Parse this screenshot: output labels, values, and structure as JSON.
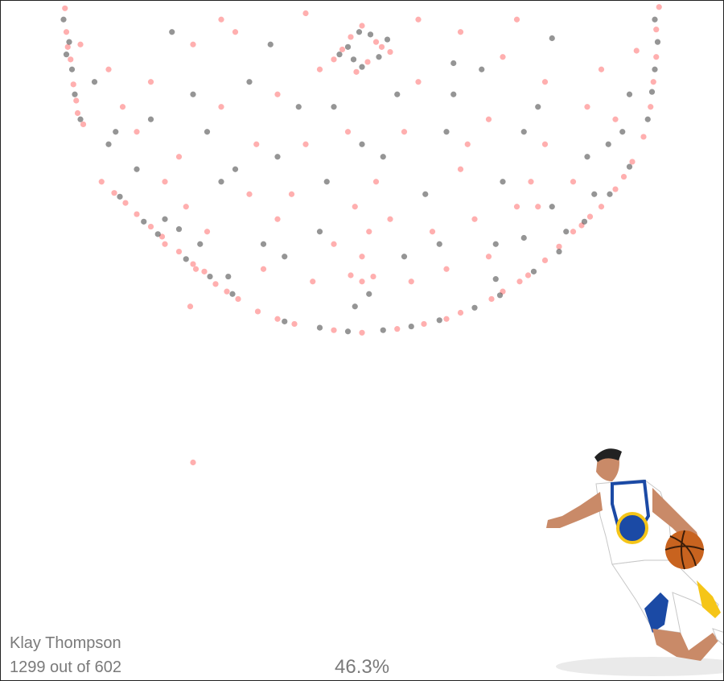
{
  "player": {
    "name": "Klay Thompson",
    "count_text": "1299 out of 602",
    "percentage_text": "46.3%"
  },
  "chart_data": {
    "type": "scatter",
    "title": "",
    "xlabel": "",
    "ylabel": "",
    "xlim": [
      -250,
      250
    ],
    "ylim": [
      -52,
      370
    ],
    "grid": false,
    "legend": "none",
    "colors": {
      "made": "#ff4d4d",
      "missed": "#2b2b2b"
    },
    "series": [
      {
        "outcome": "made",
        "points": [
          [
            -211,
            -39
          ],
          [
            -210,
            -20
          ],
          [
            -207,
            2
          ],
          [
            -205,
            22
          ],
          [
            -202,
            45
          ],
          [
            -209,
            -8
          ],
          [
            -203,
            35
          ],
          [
            -198,
            54
          ],
          [
            -176,
            109
          ],
          [
            -168,
            117
          ],
          [
            -150,
            136
          ],
          [
            -142,
            144
          ],
          [
            -120,
            166
          ],
          [
            -112,
            172
          ],
          [
            -96,
            188
          ],
          [
            -88,
            194
          ],
          [
            -60,
            210
          ],
          [
            -48,
            214
          ],
          [
            -20,
            219
          ],
          [
            0,
            221
          ],
          [
            25,
            218
          ],
          [
            44,
            214
          ],
          [
            70,
            205
          ],
          [
            92,
            194
          ],
          [
            112,
            180
          ],
          [
            130,
            163
          ],
          [
            150,
            140
          ],
          [
            162,
            128
          ],
          [
            180,
            106
          ],
          [
            192,
            84
          ],
          [
            200,
            64
          ],
          [
            205,
            40
          ],
          [
            207,
            20
          ],
          [
            209,
            0
          ],
          [
            209,
            -22
          ],
          [
            211,
            -40
          ],
          [
            -160,
            126
          ],
          [
            -130,
            156
          ],
          [
            -104,
            182
          ],
          [
            -74,
            204
          ],
          [
            60,
            210
          ],
          [
            100,
            188
          ],
          [
            140,
            152
          ],
          [
            170,
            120
          ],
          [
            186,
            96
          ],
          [
            -185,
            100
          ],
          [
            -140,
            150
          ],
          [
            -118,
            170
          ],
          [
            118,
            175
          ],
          [
            156,
            135
          ],
          [
            0,
            -25
          ],
          [
            -8,
            -16
          ],
          [
            10,
            -12
          ],
          [
            -14,
            -6
          ],
          [
            14,
            -8
          ],
          [
            4,
            4
          ],
          [
            -4,
            12
          ],
          [
            20,
            -4
          ],
          [
            -20,
            2
          ],
          [
            -160,
            60
          ],
          [
            -130,
            80
          ],
          [
            -100,
            40
          ],
          [
            -80,
            110
          ],
          [
            -60,
            130
          ],
          [
            -40,
            70
          ],
          [
            -20,
            150
          ],
          [
            10,
            100
          ],
          [
            30,
            60
          ],
          [
            50,
            140
          ],
          [
            70,
            90
          ],
          [
            90,
            50
          ],
          [
            110,
            120
          ],
          [
            130,
            70
          ],
          [
            150,
            100
          ],
          [
            -150,
            20
          ],
          [
            -120,
            -10
          ],
          [
            -90,
            -20
          ],
          [
            -60,
            30
          ],
          [
            -30,
            10
          ],
          [
            40,
            20
          ],
          [
            70,
            -20
          ],
          [
            100,
            0
          ],
          [
            130,
            20
          ],
          [
            160,
            40
          ],
          [
            -110,
            140
          ],
          [
            -70,
            170
          ],
          [
            60,
            170
          ],
          [
            90,
            160
          ],
          [
            120,
            100
          ],
          [
            -140,
            100
          ],
          [
            -50,
            110
          ],
          [
            -10,
            60
          ],
          [
            20,
            130
          ],
          [
            80,
            130
          ],
          [
            -180,
            10
          ],
          [
            -170,
            40
          ],
          [
            170,
            10
          ],
          [
            180,
            50
          ],
          [
            -100,
            -30
          ],
          [
            110,
            -30
          ],
          [
            -40,
            -35
          ],
          [
            40,
            -30
          ],
          [
            -200,
            -10
          ],
          [
            195,
            -5
          ],
          [
            -35,
            180
          ],
          [
            35,
            180
          ],
          [
            -125,
            120
          ],
          [
            125,
            120
          ],
          [
            -75,
            70
          ],
          [
            75,
            70
          ],
          [
            0,
            180
          ],
          [
            -5,
            120
          ],
          [
            5,
            140
          ],
          [
            0,
            160
          ],
          [
            -8,
            175
          ],
          [
            8,
            176
          ],
          [
            -120,
            325
          ],
          [
            -122,
            200
          ]
        ]
      },
      {
        "outcome": "missed",
        "points": [
          [
            -212,
            -30
          ],
          [
            -208,
            -12
          ],
          [
            -206,
            10
          ],
          [
            -204,
            30
          ],
          [
            -200,
            50
          ],
          [
            -210,
            -2
          ],
          [
            -172,
            112
          ],
          [
            -155,
            132
          ],
          [
            -145,
            142
          ],
          [
            -125,
            162
          ],
          [
            -108,
            176
          ],
          [
            -92,
            190
          ],
          [
            -55,
            212
          ],
          [
            -30,
            217
          ],
          [
            -10,
            220
          ],
          [
            15,
            219
          ],
          [
            35,
            216
          ],
          [
            55,
            211
          ],
          [
            80,
            201
          ],
          [
            98,
            191
          ],
          [
            122,
            172
          ],
          [
            140,
            156
          ],
          [
            158,
            132
          ],
          [
            176,
            110
          ],
          [
            190,
            88
          ],
          [
            203,
            50
          ],
          [
            206,
            28
          ],
          [
            208,
            10
          ],
          [
            210,
            -12
          ],
          [
            208,
            -30
          ],
          [
            -2,
            -20
          ],
          [
            6,
            -18
          ],
          [
            -10,
            -8
          ],
          [
            12,
            0
          ],
          [
            0,
            8
          ],
          [
            -16,
            -2
          ],
          [
            18,
            -14
          ],
          [
            -6,
            2
          ],
          [
            -150,
            50
          ],
          [
            -120,
            30
          ],
          [
            -90,
            90
          ],
          [
            -70,
            150
          ],
          [
            -45,
            40
          ],
          [
            -25,
            100
          ],
          [
            15,
            80
          ],
          [
            45,
            110
          ],
          [
            65,
            30
          ],
          [
            95,
            150
          ],
          [
            115,
            60
          ],
          [
            135,
            120
          ],
          [
            160,
            80
          ],
          [
            -140,
            130
          ],
          [
            -110,
            60
          ],
          [
            -80,
            20
          ],
          [
            -55,
            160
          ],
          [
            55,
            150
          ],
          [
            85,
            10
          ],
          [
            125,
            40
          ],
          [
            -160,
            90
          ],
          [
            165,
            110
          ],
          [
            -100,
            100
          ],
          [
            100,
            100
          ],
          [
            -20,
            40
          ],
          [
            25,
            30
          ],
          [
            -135,
            -20
          ],
          [
            135,
            -15
          ],
          [
            0,
            70
          ],
          [
            -5,
            200
          ],
          [
            5,
            190
          ],
          [
            -175,
            60
          ],
          [
            175,
            70
          ],
          [
            -190,
            20
          ],
          [
            190,
            30
          ],
          [
            -65,
            -10
          ],
          [
            65,
            5
          ],
          [
            -30,
            140
          ],
          [
            30,
            160
          ],
          [
            -115,
            150
          ],
          [
            115,
            145
          ],
          [
            -130,
            138
          ],
          [
            -95,
            176
          ],
          [
            95,
            178
          ],
          [
            145,
            140
          ],
          [
            -60,
            80
          ],
          [
            60,
            60
          ],
          [
            -180,
            70
          ],
          [
            185,
            60
          ]
        ]
      }
    ]
  }
}
